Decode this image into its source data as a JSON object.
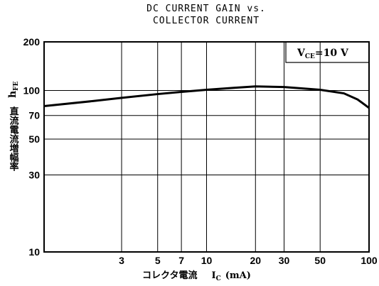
{
  "chart_data": {
    "type": "line",
    "title": [
      "DC CURRENT GAIN vs.",
      "COLLECTOR CURRENT"
    ],
    "y_label": {
      "text": "直流電流増幅率",
      "symbol": "h",
      "sub": "FE"
    },
    "x_label": {
      "text": "コレクタ電流",
      "symbol": "I",
      "sub": "C",
      "unit": "(mA)"
    },
    "annotation": {
      "symbol": "V",
      "sub": "CE",
      "text": "=10 V"
    },
    "x": [
      1,
      2,
      3,
      5,
      7,
      10,
      15,
      20,
      30,
      50,
      70,
      85,
      100
    ],
    "series": [
      {
        "color": "#000000",
        "values": [
          80,
          86,
          90,
          95,
          98,
          101,
          104,
          106,
          105,
          101,
          96,
          88,
          78
        ]
      }
    ],
    "xlim": [
      1,
      100
    ],
    "xticks": [
      3,
      5,
      7,
      10,
      20,
      30,
      50,
      100
    ],
    "ylim": [
      10,
      200
    ],
    "yticks": [
      10,
      30,
      50,
      70,
      100,
      200
    ],
    "xscale": "log",
    "yscale": "log",
    "grid": true
  }
}
